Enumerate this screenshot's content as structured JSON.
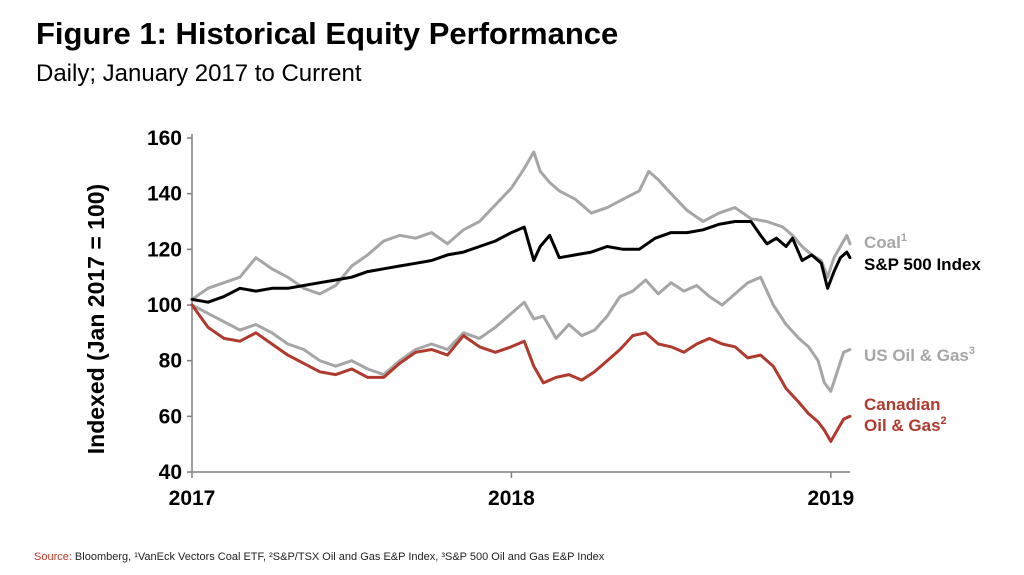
{
  "header": {
    "title": "Figure 1: Historical Equity Performance",
    "subtitle": "Daily; January 2017 to Current"
  },
  "footer": {
    "source_label": "Source:",
    "source_text": "Bloomberg, ¹VanEck Vectors Coal ETF, ²S&P/TSX Oil and Gas E&P Index, ³S&P 500 Oil and Gas E&P Index"
  },
  "chart_data": {
    "type": "line",
    "title": "Figure 1: Historical Equity Performance",
    "subtitle": "Daily; January 2017 to Current",
    "xlabel": "",
    "ylabel": "Indexed (Jan 2017 = 100)",
    "xlim": [
      2017.0,
      2019.06
    ],
    "ylim": [
      40,
      160
    ],
    "x_ticks": [
      "2017",
      "2018",
      "2019"
    ],
    "y_ticks": [
      40,
      60,
      80,
      100,
      120,
      140,
      160
    ],
    "grid": false,
    "legend": "direct labels at right end of lines",
    "series": [
      {
        "name": "Coal",
        "superscript": "1",
        "color": "#a6a6a6",
        "x": [
          2017.0,
          2017.05,
          2017.1,
          2017.15,
          2017.2,
          2017.25,
          2017.3,
          2017.35,
          2017.4,
          2017.45,
          2017.5,
          2017.55,
          2017.6,
          2017.65,
          2017.7,
          2017.75,
          2017.8,
          2017.85,
          2017.9,
          2017.95,
          2018.0,
          2018.04,
          2018.07,
          2018.09,
          2018.12,
          2018.15,
          2018.2,
          2018.25,
          2018.3,
          2018.35,
          2018.4,
          2018.43,
          2018.46,
          2018.5,
          2018.55,
          2018.6,
          2018.65,
          2018.7,
          2018.75,
          2018.8,
          2018.85,
          2018.88,
          2018.91,
          2018.94,
          2018.97,
          2018.99,
          2019.01,
          2019.03,
          2019.05,
          2019.06
        ],
        "y": [
          102,
          106,
          108,
          110,
          117,
          113,
          110,
          106,
          104,
          107,
          114,
          118,
          123,
          125,
          124,
          126,
          122,
          127,
          130,
          136,
          142,
          149,
          155,
          148,
          144,
          141,
          138,
          133,
          135,
          138,
          141,
          148,
          145,
          140,
          134,
          130,
          133,
          135,
          131,
          130,
          128,
          125,
          121,
          118,
          116,
          110,
          117,
          121,
          125,
          122
        ]
      },
      {
        "name": "S&P 500 Index",
        "superscript": "",
        "color": "#000000",
        "x": [
          2017.0,
          2017.05,
          2017.1,
          2017.15,
          2017.2,
          2017.25,
          2017.3,
          2017.35,
          2017.4,
          2017.45,
          2017.5,
          2017.55,
          2017.6,
          2017.65,
          2017.7,
          2017.75,
          2017.8,
          2017.85,
          2017.9,
          2017.95,
          2018.0,
          2018.04,
          2018.07,
          2018.09,
          2018.12,
          2018.15,
          2018.2,
          2018.25,
          2018.3,
          2018.35,
          2018.4,
          2018.45,
          2018.5,
          2018.55,
          2018.6,
          2018.65,
          2018.7,
          2018.75,
          2018.78,
          2018.8,
          2018.83,
          2018.86,
          2018.88,
          2018.91,
          2018.94,
          2018.97,
          2018.99,
          2019.01,
          2019.03,
          2019.05,
          2019.06
        ],
        "y": [
          102,
          101,
          103,
          106,
          105,
          106,
          106,
          107,
          108,
          109,
          110,
          112,
          113,
          114,
          115,
          116,
          118,
          119,
          121,
          123,
          126,
          128,
          116,
          121,
          125,
          117,
          118,
          119,
          121,
          120,
          120,
          124,
          126,
          126,
          127,
          129,
          130,
          130,
          125,
          122,
          124,
          121,
          124,
          116,
          118,
          115,
          106,
          112,
          117,
          119,
          117
        ]
      },
      {
        "name": "US Oil & Gas",
        "superscript": "3",
        "color": "#a6a6a6",
        "x": [
          2017.0,
          2017.05,
          2017.1,
          2017.15,
          2017.2,
          2017.25,
          2017.3,
          2017.35,
          2017.4,
          2017.45,
          2017.5,
          2017.55,
          2017.6,
          2017.65,
          2017.7,
          2017.75,
          2017.8,
          2017.85,
          2017.9,
          2017.95,
          2018.0,
          2018.04,
          2018.07,
          2018.1,
          2018.14,
          2018.18,
          2018.22,
          2018.26,
          2018.3,
          2018.34,
          2018.38,
          2018.42,
          2018.46,
          2018.5,
          2018.54,
          2018.58,
          2018.62,
          2018.66,
          2018.7,
          2018.74,
          2018.78,
          2018.82,
          2018.86,
          2018.9,
          2018.93,
          2018.96,
          2018.98,
          2019.0,
          2019.02,
          2019.04,
          2019.06
        ],
        "y": [
          100,
          97,
          94,
          91,
          93,
          90,
          86,
          84,
          80,
          78,
          80,
          77,
          75,
          80,
          84,
          86,
          84,
          90,
          88,
          92,
          97,
          101,
          95,
          96,
          88,
          93,
          89,
          91,
          96,
          103,
          105,
          109,
          104,
          108,
          105,
          107,
          103,
          100,
          104,
          108,
          110,
          100,
          93,
          88,
          85,
          80,
          72,
          69,
          76,
          83,
          84
        ]
      },
      {
        "name": "Canadian Oil & Gas",
        "superscript": "2",
        "color": "#b03a2e",
        "x": [
          2017.0,
          2017.05,
          2017.1,
          2017.15,
          2017.2,
          2017.25,
          2017.3,
          2017.35,
          2017.4,
          2017.45,
          2017.5,
          2017.55,
          2017.6,
          2017.65,
          2017.7,
          2017.75,
          2017.8,
          2017.85,
          2017.9,
          2017.95,
          2018.0,
          2018.04,
          2018.07,
          2018.1,
          2018.14,
          2018.18,
          2018.22,
          2018.26,
          2018.3,
          2018.34,
          2018.38,
          2018.42,
          2018.46,
          2018.5,
          2018.54,
          2018.58,
          2018.62,
          2018.66,
          2018.7,
          2018.74,
          2018.78,
          2018.82,
          2018.86,
          2018.9,
          2018.93,
          2018.96,
          2018.98,
          2019.0,
          2019.02,
          2019.04,
          2019.06
        ],
        "y": [
          100,
          92,
          88,
          87,
          90,
          86,
          82,
          79,
          76,
          75,
          77,
          74,
          74,
          79,
          83,
          84,
          82,
          89,
          85,
          83,
          85,
          87,
          78,
          72,
          74,
          75,
          73,
          76,
          80,
          84,
          89,
          90,
          86,
          85,
          83,
          86,
          88,
          86,
          85,
          81,
          82,
          78,
          70,
          65,
          61,
          58,
          55,
          51,
          55,
          59,
          60
        ]
      }
    ]
  }
}
